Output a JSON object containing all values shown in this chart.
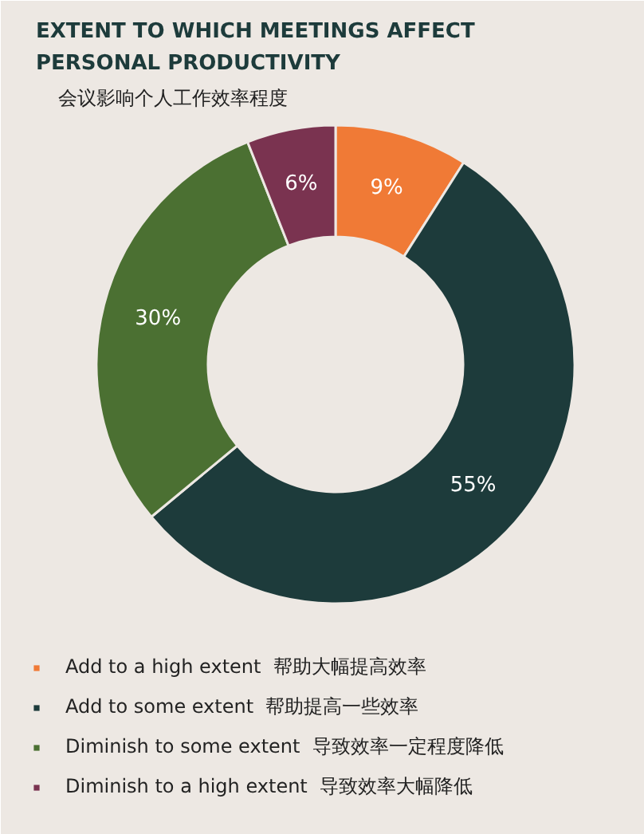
{
  "chart_data": {
    "type": "donut",
    "title": "EXTENT TO WHICH MEETINGS AFFECT\nPERSONAL PRODUCTIVITY",
    "subtitle": "会议影响个人工作效率程度",
    "categories": [
      "Add to a high extent  帮助大幅提高效率",
      "Add to some extent  帮助提高一些效率",
      "Diminish to some extent  导致效率一定程度降低",
      "Diminish to a high extent  导致效率大幅降低"
    ],
    "values": [
      9,
      55,
      30,
      6
    ],
    "colors": [
      "#f07a36",
      "#1d3b3b",
      "#4b7032",
      "#7a3350"
    ],
    "value_labels": [
      "9%",
      "55%",
      "30%",
      "6%"
    ],
    "legend": "bottom"
  }
}
